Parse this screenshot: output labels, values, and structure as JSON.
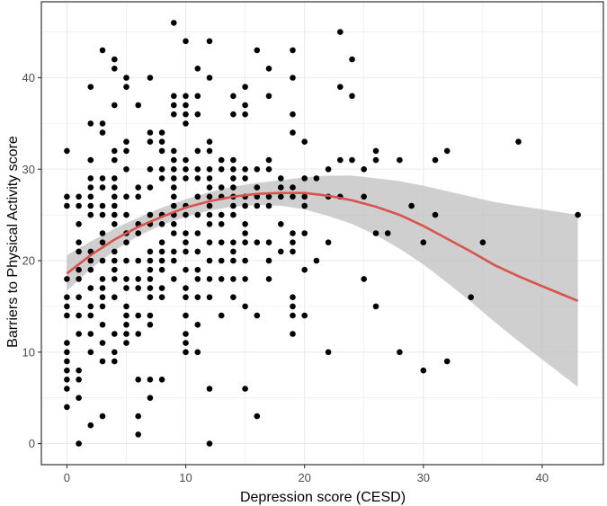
{
  "chart_data": {
    "type": "scatter",
    "title": "",
    "xlabel": "Depression score (CESD)",
    "ylabel": "Barriers to Physical Activity score",
    "xlim": [
      -2.15,
      45.15
    ],
    "ylim": [
      -2.3,
      48.3
    ],
    "xticks": [
      0,
      10,
      20,
      30,
      40
    ],
    "yticks": [
      0,
      10,
      20,
      30,
      40
    ],
    "grid": true,
    "legend": "none",
    "colors": {
      "points": "#000000",
      "fit_line": "#d9534f",
      "ribbon": "#bfbfbf",
      "grid": "#ebebeb",
      "frame": "#333333"
    },
    "points": [
      [
        0,
        32
      ],
      [
        0,
        27
      ],
      [
        0,
        26
      ],
      [
        0,
        18
      ],
      [
        0,
        16
      ],
      [
        0,
        15
      ],
      [
        0,
        14
      ],
      [
        0,
        11
      ],
      [
        0,
        10
      ],
      [
        0,
        9
      ],
      [
        0,
        8
      ],
      [
        0,
        7
      ],
      [
        0,
        6
      ],
      [
        0,
        4
      ],
      [
        1,
        27
      ],
      [
        1,
        26
      ],
      [
        1,
        24
      ],
      [
        1,
        22
      ],
      [
        1,
        21
      ],
      [
        1,
        19
      ],
      [
        1,
        18
      ],
      [
        1,
        16
      ],
      [
        1,
        14
      ],
      [
        1,
        12
      ],
      [
        1,
        8
      ],
      [
        1,
        7
      ],
      [
        1,
        5
      ],
      [
        1,
        0
      ],
      [
        2,
        39
      ],
      [
        2,
        35
      ],
      [
        2,
        31
      ],
      [
        2,
        29
      ],
      [
        2,
        28
      ],
      [
        2,
        27
      ],
      [
        2,
        26
      ],
      [
        2,
        25
      ],
      [
        2,
        21
      ],
      [
        2,
        20
      ],
      [
        2,
        19
      ],
      [
        2,
        17
      ],
      [
        2,
        15
      ],
      [
        2,
        14
      ],
      [
        2,
        12
      ],
      [
        2,
        10
      ],
      [
        2,
        2
      ],
      [
        3,
        43
      ],
      [
        3,
        35
      ],
      [
        3,
        34
      ],
      [
        3,
        29
      ],
      [
        3,
        28
      ],
      [
        3,
        26
      ],
      [
        3,
        25
      ],
      [
        3,
        23
      ],
      [
        3,
        22
      ],
      [
        3,
        20
      ],
      [
        3,
        18
      ],
      [
        3,
        17
      ],
      [
        3,
        16
      ],
      [
        3,
        15
      ],
      [
        3,
        13
      ],
      [
        3,
        11
      ],
      [
        3,
        9
      ],
      [
        3,
        3
      ],
      [
        4,
        42
      ],
      [
        4,
        41
      ],
      [
        4,
        37
      ],
      [
        4,
        32
      ],
      [
        4,
        31
      ],
      [
        4,
        29
      ],
      [
        4,
        28
      ],
      [
        4,
        27
      ],
      [
        4,
        26
      ],
      [
        4,
        25
      ],
      [
        4,
        24
      ],
      [
        4,
        21
      ],
      [
        4,
        20
      ],
      [
        4,
        19
      ],
      [
        4,
        18
      ],
      [
        4,
        16
      ],
      [
        4,
        12
      ],
      [
        4,
        10
      ],
      [
        4,
        9
      ],
      [
        5,
        40
      ],
      [
        5,
        39
      ],
      [
        5,
        33
      ],
      [
        5,
        32
      ],
      [
        5,
        30
      ],
      [
        5,
        27
      ],
      [
        5,
        25
      ],
      [
        5,
        23
      ],
      [
        5,
        22
      ],
      [
        5,
        20
      ],
      [
        5,
        18
      ],
      [
        5,
        17
      ],
      [
        5,
        15
      ],
      [
        5,
        14
      ],
      [
        5,
        13
      ],
      [
        5,
        12
      ],
      [
        5,
        11
      ],
      [
        6,
        37
      ],
      [
        6,
        28
      ],
      [
        6,
        27
      ],
      [
        6,
        24
      ],
      [
        6,
        23
      ],
      [
        6,
        20
      ],
      [
        6,
        18
      ],
      [
        6,
        17
      ],
      [
        6,
        14
      ],
      [
        6,
        12
      ],
      [
        6,
        7
      ],
      [
        6,
        3
      ],
      [
        6,
        1
      ],
      [
        7,
        40
      ],
      [
        7,
        34
      ],
      [
        7,
        33
      ],
      [
        7,
        30
      ],
      [
        7,
        28
      ],
      [
        7,
        25
      ],
      [
        7,
        24
      ],
      [
        7,
        21
      ],
      [
        7,
        20
      ],
      [
        7,
        19
      ],
      [
        7,
        18
      ],
      [
        7,
        17
      ],
      [
        7,
        16
      ],
      [
        7,
        14
      ],
      [
        7,
        13
      ],
      [
        7,
        7
      ],
      [
        7,
        5
      ],
      [
        8,
        34
      ],
      [
        8,
        33
      ],
      [
        8,
        32
      ],
      [
        8,
        30
      ],
      [
        8,
        29
      ],
      [
        8,
        25
      ],
      [
        8,
        24
      ],
      [
        8,
        22
      ],
      [
        8,
        21
      ],
      [
        8,
        20
      ],
      [
        8,
        19
      ],
      [
        8,
        17
      ],
      [
        8,
        16
      ],
      [
        8,
        7
      ],
      [
        9,
        46
      ],
      [
        9,
        38
      ],
      [
        9,
        37
      ],
      [
        9,
        36
      ],
      [
        9,
        32
      ],
      [
        9,
        31
      ],
      [
        9,
        30
      ],
      [
        9,
        29
      ],
      [
        9,
        28
      ],
      [
        9,
        27
      ],
      [
        9,
        26
      ],
      [
        9,
        25
      ],
      [
        9,
        24
      ],
      [
        9,
        23
      ],
      [
        9,
        21
      ],
      [
        9,
        20
      ],
      [
        9,
        18
      ],
      [
        10,
        44
      ],
      [
        10,
        38
      ],
      [
        10,
        37
      ],
      [
        10,
        36
      ],
      [
        10,
        35
      ],
      [
        10,
        31
      ],
      [
        10,
        30
      ],
      [
        10,
        29
      ],
      [
        10,
        26
      ],
      [
        10,
        25
      ],
      [
        10,
        23
      ],
      [
        10,
        22
      ],
      [
        10,
        21
      ],
      [
        10,
        19
      ],
      [
        10,
        17
      ],
      [
        10,
        16
      ],
      [
        10,
        14
      ],
      [
        10,
        12
      ],
      [
        10,
        11
      ],
      [
        10,
        10
      ],
      [
        11,
        41
      ],
      [
        11,
        38
      ],
      [
        11,
        36
      ],
      [
        11,
        32
      ],
      [
        11,
        30
      ],
      [
        11,
        29
      ],
      [
        11,
        27
      ],
      [
        11,
        25
      ],
      [
        11,
        23
      ],
      [
        11,
        21
      ],
      [
        11,
        19
      ],
      [
        11,
        18
      ],
      [
        11,
        16
      ],
      [
        11,
        13
      ],
      [
        11,
        10
      ],
      [
        12,
        44
      ],
      [
        12,
        40
      ],
      [
        12,
        33
      ],
      [
        12,
        32
      ],
      [
        12,
        30
      ],
      [
        12,
        29
      ],
      [
        12,
        28
      ],
      [
        12,
        27
      ],
      [
        12,
        26
      ],
      [
        12,
        25
      ],
      [
        12,
        24
      ],
      [
        12,
        22
      ],
      [
        12,
        20
      ],
      [
        12,
        18
      ],
      [
        12,
        16
      ],
      [
        12,
        6
      ],
      [
        12,
        0
      ],
      [
        13,
        31
      ],
      [
        13,
        30
      ],
      [
        13,
        28
      ],
      [
        13,
        27
      ],
      [
        13,
        25
      ],
      [
        13,
        24
      ],
      [
        13,
        22
      ],
      [
        13,
        20
      ],
      [
        13,
        18
      ],
      [
        13,
        14
      ],
      [
        14,
        38
      ],
      [
        14,
        36
      ],
      [
        14,
        31
      ],
      [
        14,
        30
      ],
      [
        14,
        29
      ],
      [
        14,
        28
      ],
      [
        14,
        27
      ],
      [
        14,
        26
      ],
      [
        14,
        25
      ],
      [
        14,
        22
      ],
      [
        14,
        21
      ],
      [
        14,
        20
      ],
      [
        14,
        18
      ],
      [
        14,
        16
      ],
      [
        15,
        39
      ],
      [
        15,
        37
      ],
      [
        15,
        36
      ],
      [
        15,
        30
      ],
      [
        15,
        29
      ],
      [
        15,
        27
      ],
      [
        15,
        26
      ],
      [
        15,
        24
      ],
      [
        15,
        23
      ],
      [
        15,
        22
      ],
      [
        15,
        20
      ],
      [
        15,
        18
      ],
      [
        15,
        15
      ],
      [
        15,
        6
      ],
      [
        16,
        43
      ],
      [
        16,
        30
      ],
      [
        16,
        28
      ],
      [
        16,
        27
      ],
      [
        16,
        26
      ],
      [
        16,
        22
      ],
      [
        16,
        14
      ],
      [
        16,
        3
      ],
      [
        17,
        41
      ],
      [
        17,
        38
      ],
      [
        17,
        31
      ],
      [
        17,
        30
      ],
      [
        17,
        27
      ],
      [
        17,
        26
      ],
      [
        17,
        22
      ],
      [
        17,
        20
      ],
      [
        17,
        18
      ],
      [
        18,
        29
      ],
      [
        18,
        28
      ],
      [
        18,
        27
      ],
      [
        18,
        24
      ],
      [
        18,
        21
      ],
      [
        19,
        43
      ],
      [
        19,
        40
      ],
      [
        19,
        36
      ],
      [
        19,
        34
      ],
      [
        19,
        28
      ],
      [
        19,
        27
      ],
      [
        19,
        23
      ],
      [
        19,
        22
      ],
      [
        19,
        21
      ],
      [
        19,
        16
      ],
      [
        19,
        15
      ],
      [
        19,
        14
      ],
      [
        19,
        12
      ],
      [
        20,
        33
      ],
      [
        20,
        29
      ],
      [
        20,
        27
      ],
      [
        20,
        26
      ],
      [
        20,
        23
      ],
      [
        20,
        19
      ],
      [
        20,
        14
      ],
      [
        21,
        29
      ],
      [
        21,
        20
      ],
      [
        22,
        30
      ],
      [
        22,
        27
      ],
      [
        22,
        22
      ],
      [
        22,
        10
      ],
      [
        23,
        45
      ],
      [
        23,
        39
      ],
      [
        23,
        31
      ],
      [
        23,
        27
      ],
      [
        24,
        42
      ],
      [
        24,
        38
      ],
      [
        24,
        31
      ],
      [
        25,
        30
      ],
      [
        25,
        27
      ],
      [
        25,
        18
      ],
      [
        26,
        32
      ],
      [
        26,
        31
      ],
      [
        26,
        23
      ],
      [
        26,
        15
      ],
      [
        27,
        23
      ],
      [
        28,
        31
      ],
      [
        28,
        10
      ],
      [
        29,
        26
      ],
      [
        30,
        22
      ],
      [
        30,
        8
      ],
      [
        31,
        31
      ],
      [
        31,
        25
      ],
      [
        32,
        32
      ],
      [
        32,
        9
      ],
      [
        34,
        16
      ],
      [
        35,
        22
      ],
      [
        38,
        33
      ],
      [
        43,
        25
      ]
    ],
    "fit_line": [
      [
        0,
        18.6
      ],
      [
        2,
        20.6
      ],
      [
        4,
        22.3
      ],
      [
        6,
        23.7
      ],
      [
        8,
        24.8
      ],
      [
        10,
        25.8
      ],
      [
        12,
        26.5
      ],
      [
        14,
        27.0
      ],
      [
        16,
        27.3
      ],
      [
        18,
        27.4
      ],
      [
        20,
        27.4
      ],
      [
        22,
        27.1
      ],
      [
        24,
        26.6
      ],
      [
        26,
        25.9
      ],
      [
        28,
        25.0
      ],
      [
        30,
        23.8
      ],
      [
        32,
        22.4
      ],
      [
        34,
        21.0
      ],
      [
        36,
        19.5
      ],
      [
        38,
        18.3
      ],
      [
        40,
        17.2
      ],
      [
        43,
        15.6
      ]
    ],
    "ribbon": [
      [
        0,
        16.7,
        20.6
      ],
      [
        2,
        19.1,
        22.1
      ],
      [
        4,
        21.1,
        23.5
      ],
      [
        6,
        22.7,
        24.7
      ],
      [
        8,
        23.9,
        25.8
      ],
      [
        10,
        24.8,
        26.7
      ],
      [
        12,
        25.5,
        27.5
      ],
      [
        14,
        25.9,
        28.1
      ],
      [
        16,
        26.1,
        28.5
      ],
      [
        18,
        26.0,
        28.8
      ],
      [
        20,
        25.6,
        29.1
      ],
      [
        22,
        24.9,
        29.3
      ],
      [
        24,
        24.0,
        29.3
      ],
      [
        26,
        22.8,
        29.0
      ],
      [
        28,
        21.3,
        28.7
      ],
      [
        30,
        19.6,
        28.2
      ],
      [
        32,
        17.6,
        27.6
      ],
      [
        34,
        15.5,
        27.0
      ],
      [
        36,
        13.3,
        26.4
      ],
      [
        38,
        11.2,
        26.0
      ],
      [
        40,
        9.2,
        25.6
      ],
      [
        43,
        6.2,
        25.0
      ]
    ]
  }
}
